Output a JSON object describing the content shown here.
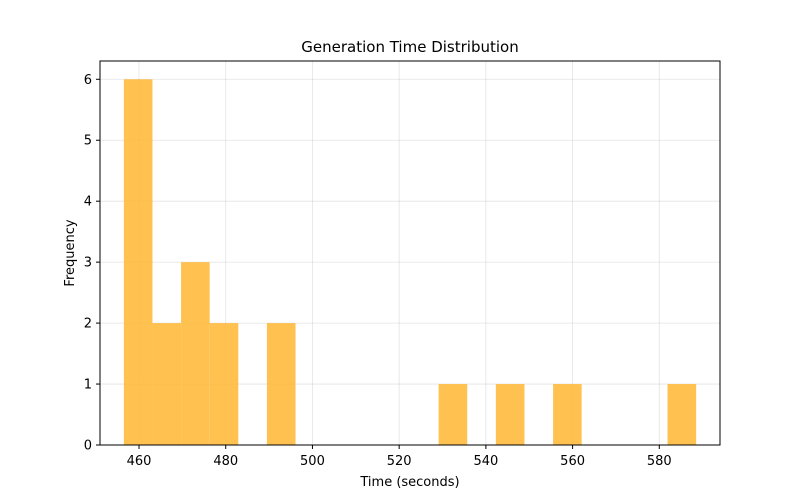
{
  "chart_data": {
    "type": "bar",
    "title": "Generation Time Distribution",
    "xlabel": "Time (seconds)",
    "ylabel": "Frequency",
    "bar_color": "#ffb732",
    "bar_opacity": 0.85,
    "grid": true,
    "xlim": [
      451,
      594
    ],
    "ylim": [
      0,
      6.3
    ],
    "xticks": [
      460,
      480,
      500,
      520,
      540,
      560,
      580
    ],
    "yticks": [
      0,
      1,
      2,
      3,
      4,
      5,
      6
    ],
    "bins": [
      {
        "x0": 456.5,
        "x1": 463.1,
        "count": 6
      },
      {
        "x0": 463.1,
        "x1": 469.7,
        "count": 2
      },
      {
        "x0": 469.7,
        "x1": 476.3,
        "count": 3
      },
      {
        "x0": 476.3,
        "x1": 482.9,
        "count": 2
      },
      {
        "x0": 482.9,
        "x1": 489.5,
        "count": 0
      },
      {
        "x0": 489.5,
        "x1": 496.1,
        "count": 2
      },
      {
        "x0": 496.1,
        "x1": 502.7,
        "count": 0
      },
      {
        "x0": 502.7,
        "x1": 509.3,
        "count": 0
      },
      {
        "x0": 509.3,
        "x1": 515.9,
        "count": 0
      },
      {
        "x0": 515.9,
        "x1": 522.5,
        "count": 0
      },
      {
        "x0": 522.5,
        "x1": 529.1,
        "count": 0
      },
      {
        "x0": 529.1,
        "x1": 535.7,
        "count": 1
      },
      {
        "x0": 535.7,
        "x1": 542.3,
        "count": 0
      },
      {
        "x0": 542.3,
        "x1": 548.9,
        "count": 1
      },
      {
        "x0": 548.9,
        "x1": 555.5,
        "count": 0
      },
      {
        "x0": 555.5,
        "x1": 562.1,
        "count": 1
      },
      {
        "x0": 562.1,
        "x1": 568.7,
        "count": 0
      },
      {
        "x0": 568.7,
        "x1": 575.3,
        "count": 0
      },
      {
        "x0": 575.3,
        "x1": 581.9,
        "count": 0
      },
      {
        "x0": 581.9,
        "x1": 588.5,
        "count": 1
      }
    ]
  }
}
